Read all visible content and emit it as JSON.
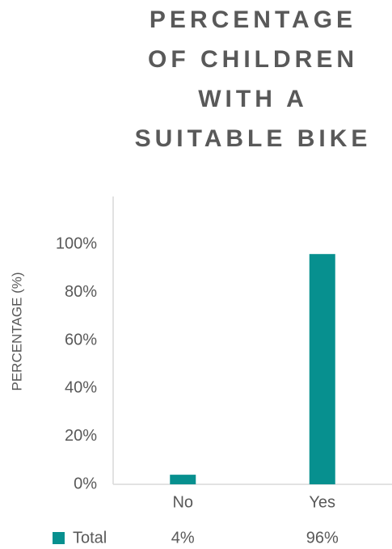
{
  "chart_data": {
    "type": "bar",
    "title": "PERCENTAGE OF CHILDREN WITH A SUITABLE BIKE",
    "y_label": "PERCENTAGE (%)",
    "categories": [
      "No",
      "Yes"
    ],
    "series": [
      {
        "name": "Total",
        "color": "#07908f",
        "values": [
          4,
          96
        ],
        "value_labels": [
          "4%",
          "96%"
        ]
      }
    ],
    "ylim": [
      0,
      120
    ],
    "yticks": [
      {
        "value": 0,
        "label": "0%"
      },
      {
        "value": 20,
        "label": "20%"
      },
      {
        "value": 40,
        "label": "40%"
      },
      {
        "value": 60,
        "label": "60%"
      },
      {
        "value": 80,
        "label": "80%"
      },
      {
        "value": 100,
        "label": "100%"
      }
    ],
    "grid": false
  }
}
